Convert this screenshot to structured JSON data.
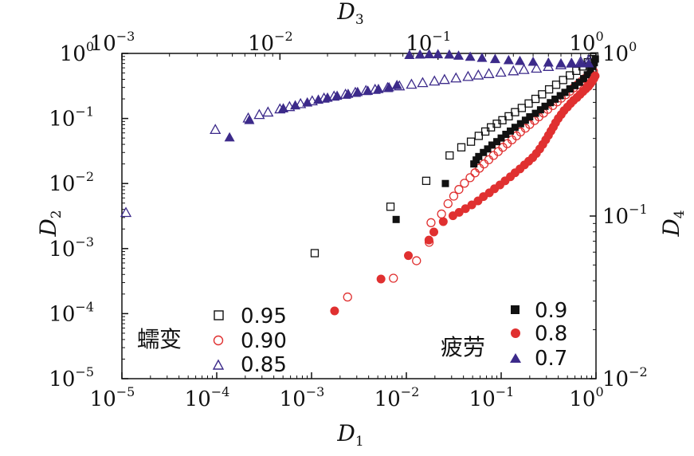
{
  "chart_data": {
    "type": "scatter",
    "bottom_axis": {
      "label": "D",
      "label_sub": "1",
      "ticks": [
        "10",
        "10",
        "10",
        "10",
        "10",
        "10"
      ],
      "tick_exps": [
        "−5",
        "−4",
        "−3",
        "−2",
        "−1",
        "0"
      ],
      "range": [
        1e-05,
        1
      ],
      "scale": "log"
    },
    "left_axis": {
      "label": "D",
      "label_sub": "2",
      "ticks": [
        "10",
        "10",
        "10",
        "10",
        "10",
        "10"
      ],
      "tick_exps": [
        "−5",
        "−4",
        "−3",
        "−2",
        "−1",
        "0"
      ],
      "range": [
        1e-05,
        1
      ],
      "scale": "log"
    },
    "top_axis": {
      "label": "D",
      "label_sub": "3",
      "ticks": [
        "10",
        "10",
        "10",
        "10"
      ],
      "tick_exps": [
        "−3",
        "−2",
        "−1",
        "0"
      ],
      "range": [
        0.001,
        1
      ],
      "scale": "log"
    },
    "right_axis": {
      "label": "D",
      "label_sub": "4",
      "ticks": [
        "10",
        "10",
        "10"
      ],
      "tick_exps": [
        "−2",
        "−1",
        "0"
      ],
      "range": [
        0.01,
        1
      ],
      "scale": "log"
    },
    "legends": [
      {
        "title": "蠕变",
        "placement": "bottom-left",
        "entries": [
          "0.95",
          "0.90",
          "0.85"
        ]
      },
      {
        "title": "疲劳",
        "placement": "bottom-right",
        "entries": [
          "0.9",
          "0.8",
          "0.7"
        ]
      }
    ],
    "colors": {
      "black": "#111111",
      "red": "#e03030",
      "purple": "#3c2a8a"
    },
    "series": [
      {
        "label": "0.95",
        "group": "蠕变",
        "marker": "square-open",
        "color": "#111111",
        "axes": "bottom-left",
        "points": [
          [
            0.00108,
            0.00085
          ],
          [
            0.0068,
            0.0044
          ],
          [
            0.0162,
            0.011
          ],
          [
            0.0286,
            0.027
          ],
          [
            0.038,
            0.036
          ],
          [
            0.048,
            0.044
          ],
          [
            0.058,
            0.054
          ],
          [
            0.068,
            0.063
          ],
          [
            0.078,
            0.073
          ],
          [
            0.09,
            0.083
          ],
          [
            0.103,
            0.094
          ],
          [
            0.12,
            0.108
          ],
          [
            0.14,
            0.125
          ],
          [
            0.165,
            0.145
          ],
          [
            0.195,
            0.17
          ],
          [
            0.23,
            0.2
          ],
          [
            0.27,
            0.235
          ],
          [
            0.32,
            0.28
          ],
          [
            0.38,
            0.33
          ],
          [
            0.45,
            0.39
          ],
          [
            0.53,
            0.46
          ],
          [
            0.62,
            0.54
          ],
          [
            0.72,
            0.63
          ],
          [
            0.82,
            0.73
          ],
          [
            0.9,
            0.82
          ],
          [
            0.96,
            0.9
          ]
        ]
      },
      {
        "label": "0.90",
        "group": "蠕变",
        "marker": "circle-open",
        "color": "#e03030",
        "axes": "bottom-left",
        "points": [
          [
            0.0024,
            0.00018
          ],
          [
            0.0073,
            0.00035
          ],
          [
            0.0128,
            0.00065
          ],
          [
            0.0174,
            0.00125
          ],
          [
            0.0182,
            0.0025
          ],
          [
            0.0235,
            0.0034
          ],
          [
            0.0275,
            0.0049
          ],
          [
            0.0316,
            0.0064
          ],
          [
            0.0358,
            0.0081
          ],
          [
            0.041,
            0.0101
          ],
          [
            0.047,
            0.0123
          ],
          [
            0.053,
            0.0146
          ],
          [
            0.059,
            0.0172
          ],
          [
            0.066,
            0.02
          ],
          [
            0.074,
            0.0232
          ],
          [
            0.083,
            0.027
          ],
          [
            0.093,
            0.031
          ],
          [
            0.104,
            0.036
          ],
          [
            0.116,
            0.041
          ],
          [
            0.13,
            0.047
          ],
          [
            0.145,
            0.054
          ],
          [
            0.16,
            0.062
          ],
          [
            0.18,
            0.071
          ],
          [
            0.2,
            0.081
          ],
          [
            0.225,
            0.093
          ],
          [
            0.25,
            0.106
          ],
          [
            0.28,
            0.121
          ],
          [
            0.31,
            0.138
          ],
          [
            0.35,
            0.158
          ],
          [
            0.39,
            0.18
          ],
          [
            0.43,
            0.205
          ],
          [
            0.48,
            0.232
          ],
          [
            0.53,
            0.262
          ],
          [
            0.58,
            0.295
          ],
          [
            0.64,
            0.33
          ],
          [
            0.7,
            0.37
          ],
          [
            0.76,
            0.41
          ],
          [
            0.82,
            0.45
          ],
          [
            0.88,
            0.49
          ],
          [
            0.94,
            0.53
          ]
        ]
      },
      {
        "label": "0.85",
        "group": "蠕变",
        "marker": "triangle-open",
        "color": "#3c2a8a",
        "axes": "top-right",
        "points": [
          [
            0.00106,
            0.105
          ],
          [
            0.0039,
            0.34
          ],
          [
            0.0063,
            0.4
          ],
          [
            0.0074,
            0.42
          ],
          [
            0.0084,
            0.435
          ],
          [
            0.01,
            0.455
          ],
          [
            0.0115,
            0.47
          ],
          [
            0.0135,
            0.49
          ],
          [
            0.016,
            0.51
          ],
          [
            0.019,
            0.53
          ],
          [
            0.022,
            0.545
          ],
          [
            0.026,
            0.56
          ],
          [
            0.03,
            0.575
          ],
          [
            0.035,
            0.59
          ],
          [
            0.04,
            0.6
          ],
          [
            0.048,
            0.615
          ],
          [
            0.057,
            0.63
          ],
          [
            0.068,
            0.645
          ],
          [
            0.08,
            0.66
          ],
          [
            0.095,
            0.675
          ],
          [
            0.11,
            0.69
          ],
          [
            0.13,
            0.705
          ],
          [
            0.155,
            0.72
          ],
          [
            0.18,
            0.735
          ],
          [
            0.21,
            0.75
          ],
          [
            0.25,
            0.765
          ],
          [
            0.3,
            0.78
          ],
          [
            0.35,
            0.795
          ],
          [
            0.42,
            0.81
          ],
          [
            0.5,
            0.83
          ],
          [
            0.6,
            0.85
          ],
          [
            0.7,
            0.87
          ],
          [
            0.8,
            0.89
          ],
          [
            0.9,
            0.91
          ]
        ]
      },
      {
        "label": "0.9",
        "group": "疲劳",
        "marker": "square-filled",
        "color": "#111111",
        "axes": "bottom-left",
        "points": [
          [
            0.0078,
            0.0028
          ],
          [
            0.0258,
            0.01
          ],
          [
            0.0515,
            0.02
          ],
          [
            0.0545,
            0.023
          ],
          [
            0.058,
            0.026
          ],
          [
            0.065,
            0.03
          ],
          [
            0.072,
            0.034
          ],
          [
            0.08,
            0.039
          ],
          [
            0.09,
            0.044
          ],
          [
            0.1,
            0.05
          ],
          [
            0.112,
            0.057
          ],
          [
            0.125,
            0.064
          ],
          [
            0.14,
            0.073
          ],
          [
            0.16,
            0.083
          ],
          [
            0.18,
            0.094
          ],
          [
            0.2,
            0.106
          ],
          [
            0.23,
            0.12
          ],
          [
            0.26,
            0.136
          ],
          [
            0.29,
            0.154
          ],
          [
            0.33,
            0.175
          ],
          [
            0.37,
            0.198
          ],
          [
            0.42,
            0.224
          ],
          [
            0.47,
            0.252
          ],
          [
            0.53,
            0.285
          ],
          [
            0.6,
            0.32
          ],
          [
            0.67,
            0.36
          ],
          [
            0.74,
            0.41
          ],
          [
            0.81,
            0.47
          ],
          [
            0.87,
            0.55
          ],
          [
            0.92,
            0.63
          ],
          [
            0.96,
            0.72
          ],
          [
            0.985,
            0.82
          ]
        ]
      },
      {
        "label": "0.8",
        "group": "疲劳",
        "marker": "circle-filled",
        "color": "#e03030",
        "axes": "bottom-left",
        "points": [
          [
            0.00175,
            0.00011
          ],
          [
            0.0054,
            0.00034
          ],
          [
            0.0105,
            0.00078
          ],
          [
            0.0173,
            0.00135
          ],
          [
            0.0195,
            0.0018
          ],
          [
            0.0245,
            0.0026
          ],
          [
            0.031,
            0.0032
          ],
          [
            0.036,
            0.0036
          ],
          [
            0.042,
            0.0041
          ],
          [
            0.049,
            0.0047
          ],
          [
            0.057,
            0.0054
          ],
          [
            0.065,
            0.0063
          ],
          [
            0.075,
            0.0072
          ],
          [
            0.085,
            0.0083
          ],
          [
            0.097,
            0.0095
          ],
          [
            0.11,
            0.011
          ],
          [
            0.125,
            0.0127
          ],
          [
            0.14,
            0.0146
          ],
          [
            0.158,
            0.0168
          ],
          [
            0.176,
            0.0193
          ],
          [
            0.195,
            0.022
          ],
          [
            0.215,
            0.025
          ],
          [
            0.235,
            0.029
          ],
          [
            0.255,
            0.034
          ],
          [
            0.275,
            0.04
          ],
          [
            0.295,
            0.047
          ],
          [
            0.315,
            0.055
          ],
          [
            0.335,
            0.064
          ],
          [
            0.355,
            0.074
          ],
          [
            0.375,
            0.086
          ],
          [
            0.4,
            0.1
          ],
          [
            0.43,
            0.115
          ],
          [
            0.46,
            0.132
          ],
          [
            0.5,
            0.15
          ],
          [
            0.54,
            0.17
          ],
          [
            0.58,
            0.19
          ],
          [
            0.63,
            0.21
          ],
          [
            0.68,
            0.235
          ],
          [
            0.73,
            0.26
          ],
          [
            0.78,
            0.285
          ],
          [
            0.83,
            0.31
          ],
          [
            0.87,
            0.34
          ],
          [
            0.91,
            0.37
          ],
          [
            0.95,
            0.41
          ],
          [
            0.98,
            0.45
          ]
        ]
      },
      {
        "label": "0.7",
        "group": "疲劳",
        "marker": "triangle-filled",
        "color": "#3c2a8a",
        "axes": "top-right",
        "points": [
          [
            0.0048,
            0.305
          ],
          [
            0.0064,
            0.39
          ],
          [
            0.0105,
            0.46
          ],
          [
            0.0125,
            0.48
          ],
          [
            0.0149,
            0.5
          ],
          [
            0.0175,
            0.52
          ],
          [
            0.02,
            0.535
          ],
          [
            0.023,
            0.55
          ],
          [
            0.027,
            0.565
          ],
          [
            0.031,
            0.58
          ],
          [
            0.036,
            0.59
          ],
          [
            0.042,
            0.605
          ],
          [
            0.049,
            0.62
          ],
          [
            0.055,
            0.64
          ],
          [
            0.066,
            0.98
          ],
          [
            0.077,
            0.985
          ],
          [
            0.088,
            0.99
          ],
          [
            0.1,
            0.99
          ],
          [
            0.118,
            0.985
          ],
          [
            0.135,
            0.97
          ],
          [
            0.16,
            0.955
          ],
          [
            0.19,
            0.94
          ],
          [
            0.23,
            0.925
          ],
          [
            0.28,
            0.91
          ],
          [
            0.33,
            0.9
          ],
          [
            0.4,
            0.89
          ],
          [
            0.5,
            0.88
          ],
          [
            0.6,
            0.87
          ],
          [
            0.7,
            0.87
          ],
          [
            0.8,
            0.87
          ],
          [
            0.9,
            0.87
          ]
        ]
      }
    ]
  }
}
